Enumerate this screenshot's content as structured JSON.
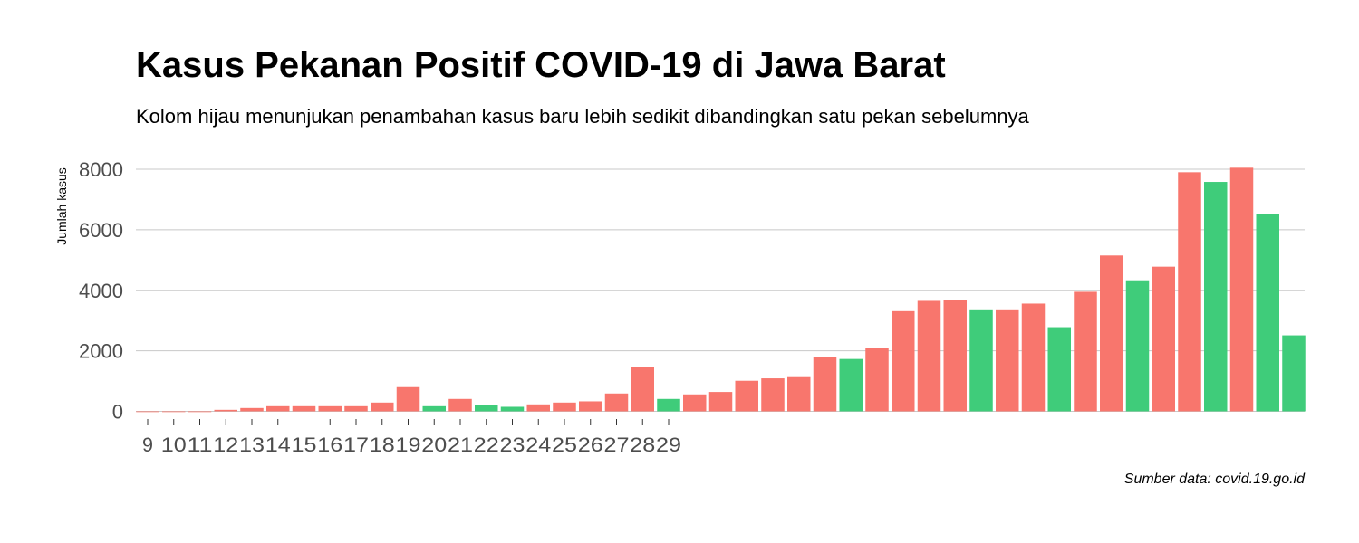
{
  "chart_data": {
    "type": "bar",
    "title": "Kasus Pekanan Positif COVID-19 di Jawa Barat",
    "subtitle": "Kolom hijau menunjukan penambahan kasus baru lebih sedikit dibandingkan satu pekan sebelumnya",
    "caption": "Sumber data: covid.19.go.id",
    "xlabel": "",
    "ylabel": "Jumlah kasus",
    "ylim": [
      0,
      8200
    ],
    "yticks": [
      0,
      2000,
      4000,
      6000,
      8000
    ],
    "grid": "horizontal",
    "legend": "none",
    "colors": {
      "increase": "#F8766D",
      "decrease": "#3FCC7A",
      "grid": "#c8c8c8",
      "axis_text": "#4d4d4d"
    },
    "tick_labels": [
      "9",
      "10",
      "11",
      "12",
      "13",
      "14",
      "15",
      "16",
      "17",
      "18",
      "19",
      "20",
      "21",
      "22",
      "23",
      "24",
      "25",
      "26",
      "27",
      "28",
      "29"
    ],
    "values": [
      0,
      0,
      0,
      50,
      110,
      170,
      170,
      170,
      170,
      290,
      800,
      170,
      410,
      210,
      150,
      230,
      290,
      330,
      590,
      1460,
      410,
      560,
      640,
      1010,
      1090,
      1130,
      1790,
      1730,
      2080,
      3310,
      3650,
      3680,
      3370,
      3370,
      3560,
      2780,
      3950,
      5150,
      4330,
      4780,
      7900,
      7580,
      8050,
      6520,
      2510
    ],
    "decrease": [
      false,
      false,
      false,
      false,
      false,
      false,
      false,
      false,
      false,
      false,
      false,
      true,
      false,
      true,
      true,
      false,
      false,
      false,
      false,
      false,
      true,
      false,
      false,
      false,
      false,
      false,
      false,
      true,
      false,
      false,
      false,
      false,
      true,
      false,
      false,
      true,
      false,
      false,
      true,
      false,
      false,
      true,
      false,
      true,
      true
    ]
  }
}
